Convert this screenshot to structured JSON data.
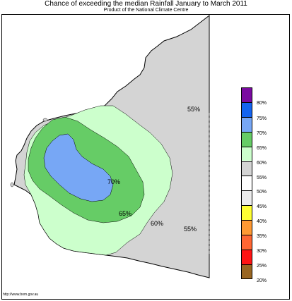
{
  "title": "Chance of exceeding the median Rainfall January to March 2011",
  "subtitle": "Product of the National Climate Centre",
  "footer_url": "http://www.bom.gov.au",
  "map_labels": [
    {
      "id": "label-55-north",
      "text": "55%"
    },
    {
      "id": "label-70",
      "text": "70%"
    },
    {
      "id": "label-65",
      "text": "65%"
    },
    {
      "id": "label-60",
      "text": "60%"
    },
    {
      "id": "label-55-south",
      "text": "55%"
    }
  ],
  "colors": {
    "land_base": "#d4d4d4",
    "zone_60": "#ccffcc",
    "zone_65": "#66cc66",
    "zone_70": "#77a7f5",
    "border": "#000000"
  },
  "legend": [
    {
      "label": "80%",
      "color": "#7a0aa0"
    },
    {
      "label": "75%",
      "color": "#1464f0"
    },
    {
      "label": "70%",
      "color": "#77a7f5"
    },
    {
      "label": "65%",
      "color": "#66cc66"
    },
    {
      "label": "60%",
      "color": "#ccffcc"
    },
    {
      "label": "55%",
      "color": "#d4d4d4"
    },
    {
      "label": "50%",
      "color": "#ffffff"
    },
    {
      "label": "45%",
      "color": "#ececec"
    },
    {
      "label": "40%",
      "color": "#ffff33"
    },
    {
      "label": "35%",
      "color": "#ff9933"
    },
    {
      "label": "30%",
      "color": "#ff6633"
    },
    {
      "label": "25%",
      "color": "#ff1414"
    },
    {
      "label": "20%",
      "color": "#996622"
    }
  ]
}
